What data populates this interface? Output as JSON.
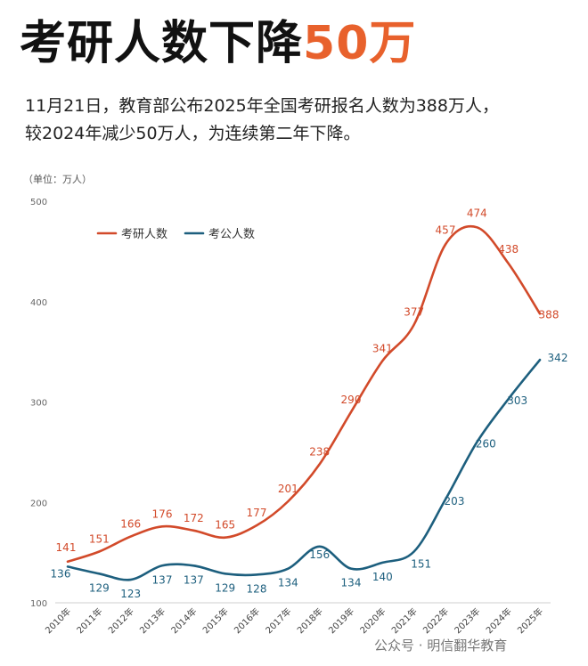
{
  "title": {
    "text": "考研人数下降",
    "highlight": "50万"
  },
  "subtitle": {
    "line1": "11月21日，教育部公布2025年全国考研报名人数为388万人，",
    "line2": "较2024年减少50万人，为连续第二年下降。"
  },
  "watermark": "公众号 · 明信翻华教育",
  "chart_data": {
    "type": "line",
    "unit_label": "（单位：万人）",
    "categories": [
      "2010年",
      "2011年",
      "2012年",
      "2013年",
      "2014年",
      "2015年",
      "2016年",
      "2017年",
      "2018年",
      "2019年",
      "2020年",
      "2021年",
      "2022年",
      "2023年",
      "2024年",
      "2025年"
    ],
    "ylim": [
      100,
      500
    ],
    "yticks": [
      100,
      200,
      300,
      400,
      500
    ],
    "grid": false,
    "legend_position": "top-left",
    "series": [
      {
        "name": "考研人数",
        "color": "#d24a2a",
        "values": [
          141,
          151,
          166,
          176,
          172,
          165,
          177,
          201,
          238,
          290,
          341,
          377,
          457,
          474,
          438,
          388
        ]
      },
      {
        "name": "考公人数",
        "color": "#1d5f7e",
        "values": [
          136,
          129,
          123,
          137,
          137,
          129,
          128,
          134,
          156,
          134,
          140,
          151,
          203,
          260,
          303,
          342
        ]
      }
    ]
  }
}
